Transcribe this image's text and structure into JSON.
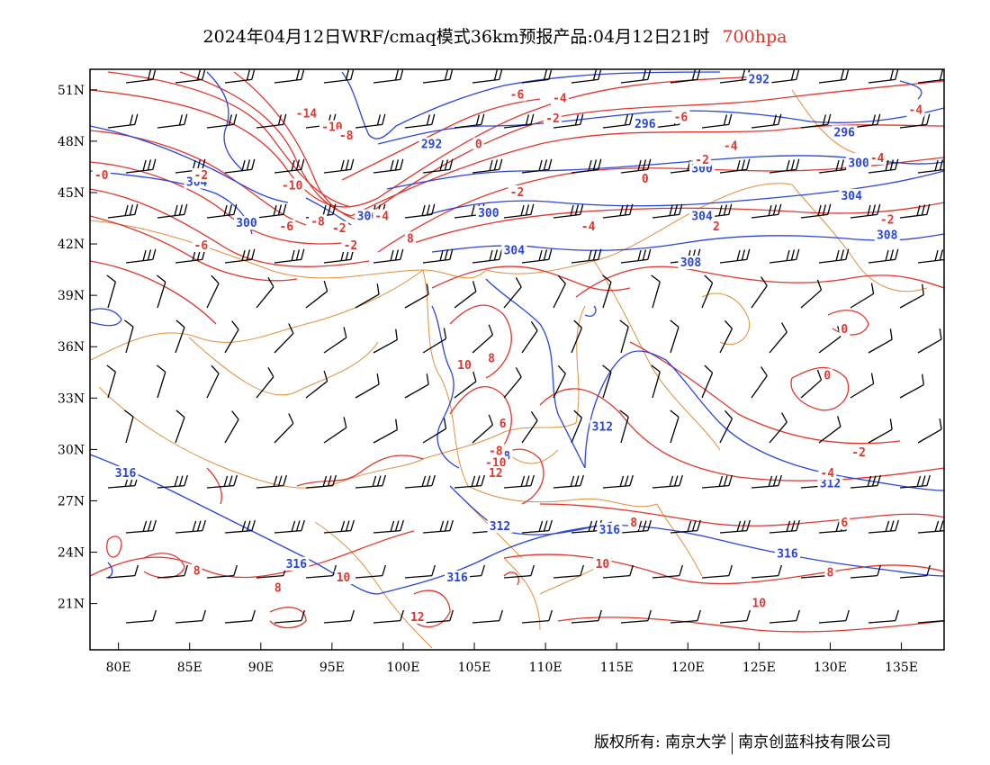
{
  "title": {
    "main": "2024年04月12日WRF/cmaq模式36km预报产品:04月12日21时",
    "level": "700hpa"
  },
  "footer": {
    "copyright": "版权所有: 南京大学",
    "company": "南京创蓝科技有限公司"
  },
  "axes": {
    "lon_ticks": [
      "80E",
      "85E",
      "90E",
      "95E",
      "100E",
      "105E",
      "110E",
      "115E",
      "120E",
      "125E",
      "130E",
      "135E"
    ],
    "lat_ticks": [
      "21N",
      "24N",
      "27N",
      "30N",
      "33N",
      "36N",
      "39N",
      "42N",
      "45N",
      "48N",
      "51N"
    ]
  },
  "colors": {
    "height_contour": "#2a46d8",
    "temp_contour": "#e0362f",
    "boundary": "#e0903c",
    "barb": "#000000"
  },
  "height_labels": [
    {
      "text": "292",
      "lon": 125,
      "lat": 51.6
    },
    {
      "text": "296",
      "lon": 117,
      "lat": 49
    },
    {
      "text": "296",
      "lon": 131,
      "lat": 48.5
    },
    {
      "text": "292",
      "lon": 102,
      "lat": 47.8
    },
    {
      "text": "300",
      "lon": 121,
      "lat": 46.4
    },
    {
      "text": "300",
      "lon": 132,
      "lat": 46.7
    },
    {
      "text": "304",
      "lon": 85.5,
      "lat": 45.6
    },
    {
      "text": "304",
      "lon": 131.5,
      "lat": 44.8
    },
    {
      "text": "300",
      "lon": 106,
      "lat": 43.8
    },
    {
      "text": "304",
      "lon": 121,
      "lat": 43.6
    },
    {
      "text": "308",
      "lon": 134,
      "lat": 42.5
    },
    {
      "text": "304",
      "lon": 107.8,
      "lat": 41.6
    },
    {
      "text": "308",
      "lon": 120.2,
      "lat": 40.9
    },
    {
      "text": "312",
      "lon": 114,
      "lat": 31.3
    },
    {
      "text": "308",
      "lon": 106.8,
      "lat": 29.6
    },
    {
      "text": "316",
      "lon": 80.5,
      "lat": 28.6
    },
    {
      "text": "312",
      "lon": 106.8,
      "lat": 25.5
    },
    {
      "text": "316",
      "lon": 114.5,
      "lat": 25.3
    },
    {
      "text": "316",
      "lon": 92.5,
      "lat": 23.3
    },
    {
      "text": "316",
      "lon": 103.8,
      "lat": 22.5
    },
    {
      "text": "316",
      "lon": 127,
      "lat": 23.9
    },
    {
      "text": "312",
      "lon": 130,
      "lat": 28
    },
    {
      "text": "300",
      "lon": 89,
      "lat": 43.2
    },
    {
      "text": "300",
      "lon": 97.5,
      "lat": 43.6
    }
  ],
  "temp_labels": [
    {
      "text": "-6",
      "lon": 108,
      "lat": 50.7
    },
    {
      "text": "-4",
      "lon": 111,
      "lat": 50.5
    },
    {
      "text": "-2",
      "lon": 110.5,
      "lat": 49.3
    },
    {
      "text": "-6",
      "lon": 119.5,
      "lat": 49.4
    },
    {
      "text": "-4",
      "lon": 136,
      "lat": 49.8
    },
    {
      "text": "-14",
      "lon": 93.2,
      "lat": 49.6
    },
    {
      "text": "-10",
      "lon": 95,
      "lat": 48.8
    },
    {
      "text": "-8",
      "lon": 96,
      "lat": 48.3
    },
    {
      "text": "0",
      "lon": 105.3,
      "lat": 47.8
    },
    {
      "text": "-4",
      "lon": 123,
      "lat": 47.7
    },
    {
      "text": "-2",
      "lon": 121,
      "lat": 46.9
    },
    {
      "text": "-4",
      "lon": 133.3,
      "lat": 47
    },
    {
      "text": "-0",
      "lon": 78.8,
      "lat": 46
    },
    {
      "text": "-2",
      "lon": 85.8,
      "lat": 46
    },
    {
      "text": "0",
      "lon": 117,
      "lat": 45.8
    },
    {
      "text": "-10",
      "lon": 92.2,
      "lat": 45.4
    },
    {
      "text": "-2",
      "lon": 108,
      "lat": 45
    },
    {
      "text": "-4",
      "lon": 98.5,
      "lat": 43.6
    },
    {
      "text": "-2",
      "lon": 134,
      "lat": 43.4
    },
    {
      "text": "-4",
      "lon": 113,
      "lat": 43
    },
    {
      "text": "2",
      "lon": 122,
      "lat": 43
    },
    {
      "text": "-6",
      "lon": 91.8,
      "lat": 43
    },
    {
      "text": "-2",
      "lon": 95.5,
      "lat": 42.9
    },
    {
      "text": "-8",
      "lon": 94,
      "lat": 43.3
    },
    {
      "text": "-2",
      "lon": 96.3,
      "lat": 41.9
    },
    {
      "text": "8",
      "lon": 100.5,
      "lat": 42.3
    },
    {
      "text": "-6",
      "lon": 85.8,
      "lat": 41.9
    },
    {
      "text": "0",
      "lon": 131,
      "lat": 37
    },
    {
      "text": "10",
      "lon": 104.3,
      "lat": 34.9
    },
    {
      "text": "8",
      "lon": 106.2,
      "lat": 35.3
    },
    {
      "text": "0",
      "lon": 129.8,
      "lat": 34.3
    },
    {
      "text": "6",
      "lon": 107,
      "lat": 31.5
    },
    {
      "text": "-2",
      "lon": 132,
      "lat": 29.8
    },
    {
      "text": "-8",
      "lon": 106.5,
      "lat": 29.9
    },
    {
      "text": "-10",
      "lon": 106.5,
      "lat": 29.2
    },
    {
      "text": "-4",
      "lon": 129.8,
      "lat": 28.6
    },
    {
      "text": "12",
      "lon": 106.5,
      "lat": 28.6
    },
    {
      "text": "6",
      "lon": 131,
      "lat": 25.7
    },
    {
      "text": "8",
      "lon": 116.2,
      "lat": 25.7
    },
    {
      "text": "8",
      "lon": 85.5,
      "lat": 22.9
    },
    {
      "text": "8",
      "lon": 91.2,
      "lat": 21.9
    },
    {
      "text": "10",
      "lon": 95.8,
      "lat": 22.5
    },
    {
      "text": "10",
      "lon": 114,
      "lat": 23.3
    },
    {
      "text": "8",
      "lon": 130,
      "lat": 22.8
    },
    {
      "text": "12",
      "lon": 101,
      "lat": 20.2
    },
    {
      "text": "10",
      "lon": 125,
      "lat": 21
    }
  ]
}
